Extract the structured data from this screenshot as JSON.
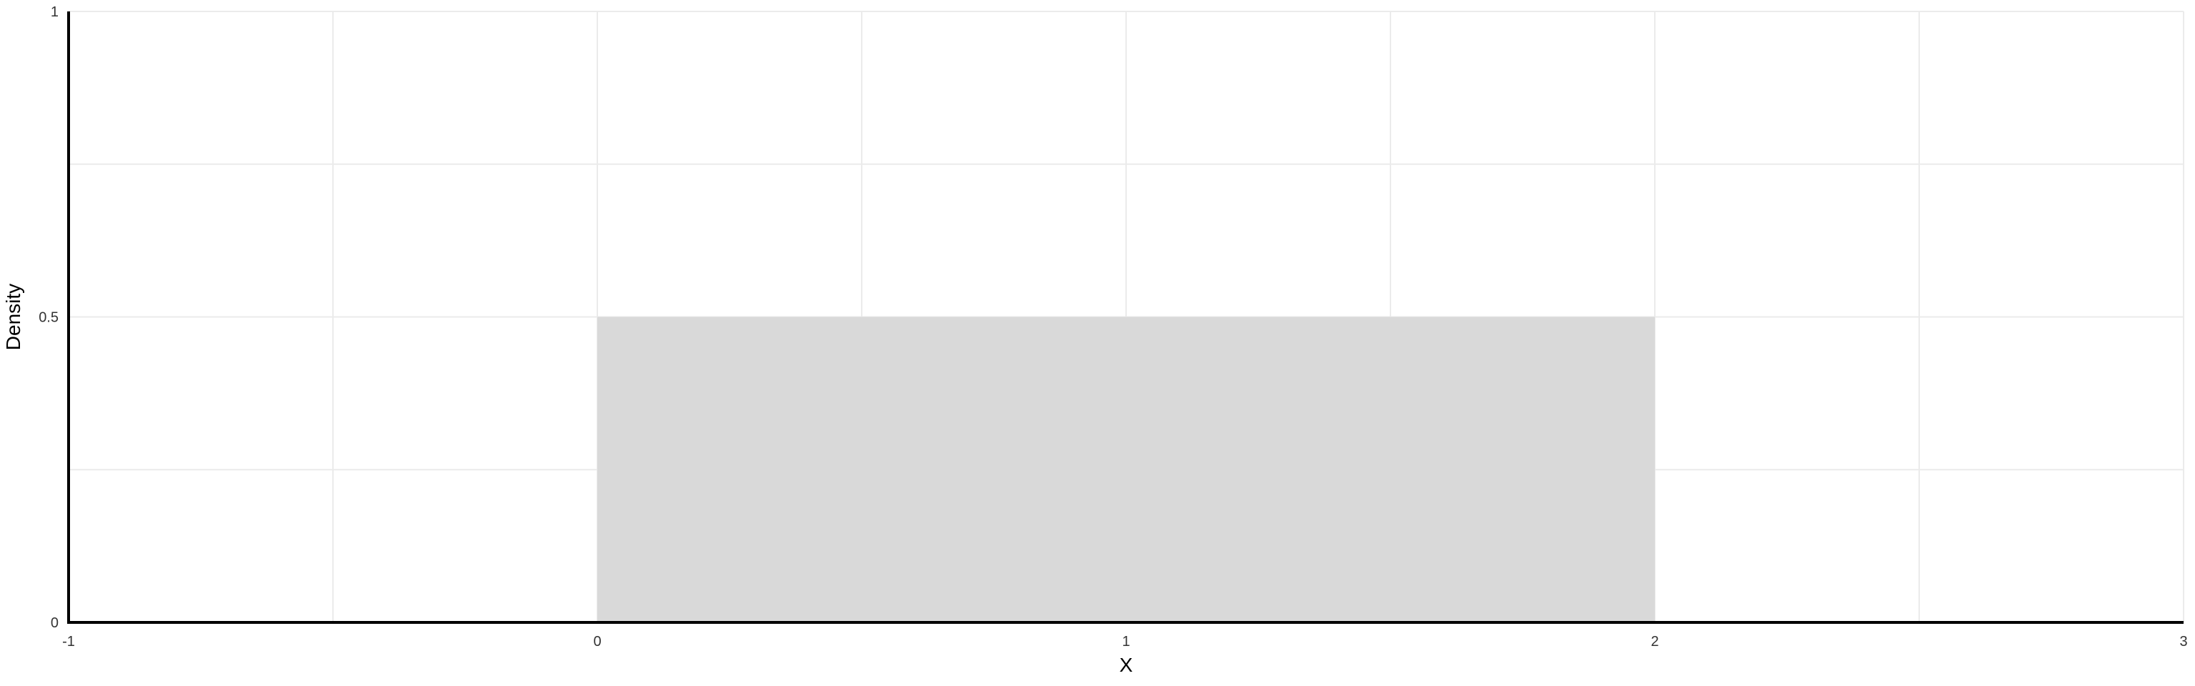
{
  "chart_data": {
    "type": "area",
    "title": "",
    "xlabel": "X",
    "ylabel": "Density",
    "xlim": [
      -1,
      3
    ],
    "ylim": [
      0,
      1
    ],
    "x_ticks": [
      -1,
      0,
      1,
      2,
      3
    ],
    "x_tick_labels": [
      "-1",
      "0",
      "1",
      "2",
      "3"
    ],
    "y_ticks": [
      0,
      0.5,
      1
    ],
    "y_tick_labels": [
      "0",
      "0.5",
      "1"
    ],
    "x_minor_grid": [
      -0.5,
      0.5,
      1.5,
      2.5
    ],
    "y_minor_grid": [
      0.25,
      0.75
    ],
    "grid": true,
    "series": [
      {
        "x": [
          0,
          0,
          2,
          2
        ],
        "y": [
          0,
          0.5,
          0.5,
          0
        ],
        "fill_color": "#d9d9d9"
      }
    ]
  }
}
